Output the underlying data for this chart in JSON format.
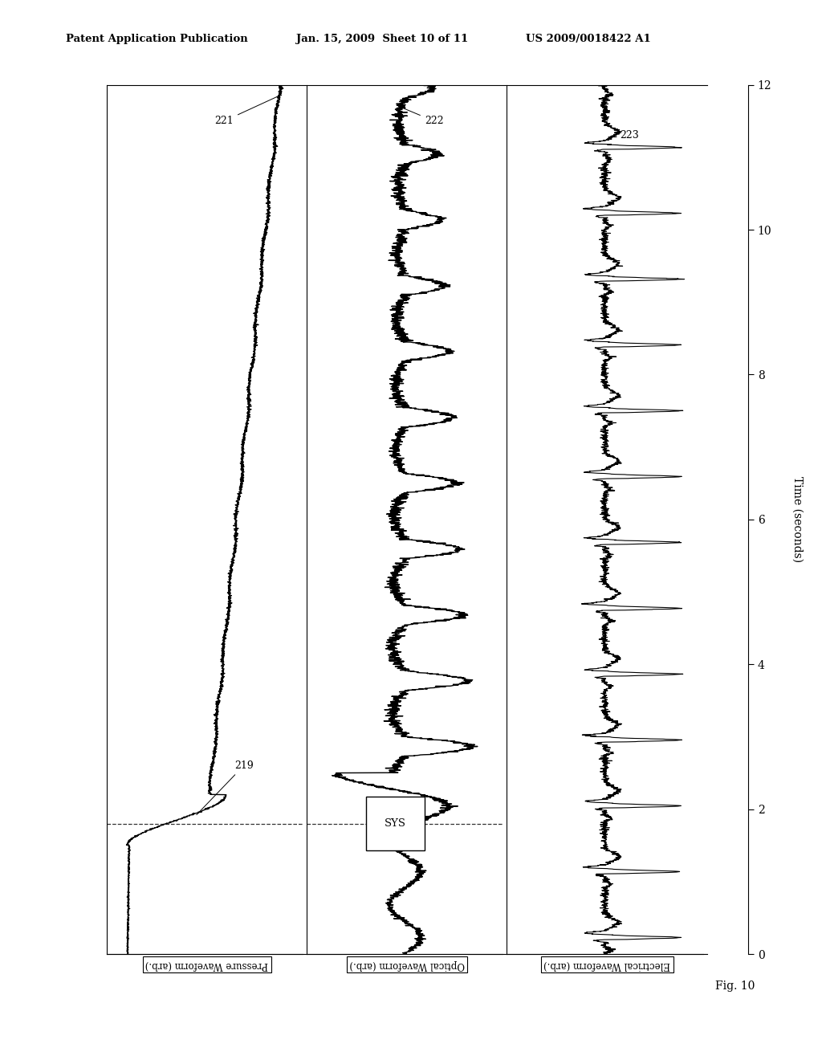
{
  "title_left": "Patent Application Publication",
  "title_mid": "Jan. 15, 2009  Sheet 10 of 11",
  "title_right": "US 2009/0018422 A1",
  "fig_label": "Fig. 10",
  "time_label": "Time (seconds)",
  "ylim": [
    0,
    12
  ],
  "yticks": [
    0,
    2,
    4,
    6,
    8,
    10,
    12
  ],
  "panel_labels": [
    "Pressure Waveform (arb.)",
    "Optical Waveform (arb.)",
    "Electrical Waveform (arb.)"
  ],
  "sys_label": "SYS",
  "sys_time": 1.8,
  "background_color": "#ffffff",
  "line_color": "#000000"
}
